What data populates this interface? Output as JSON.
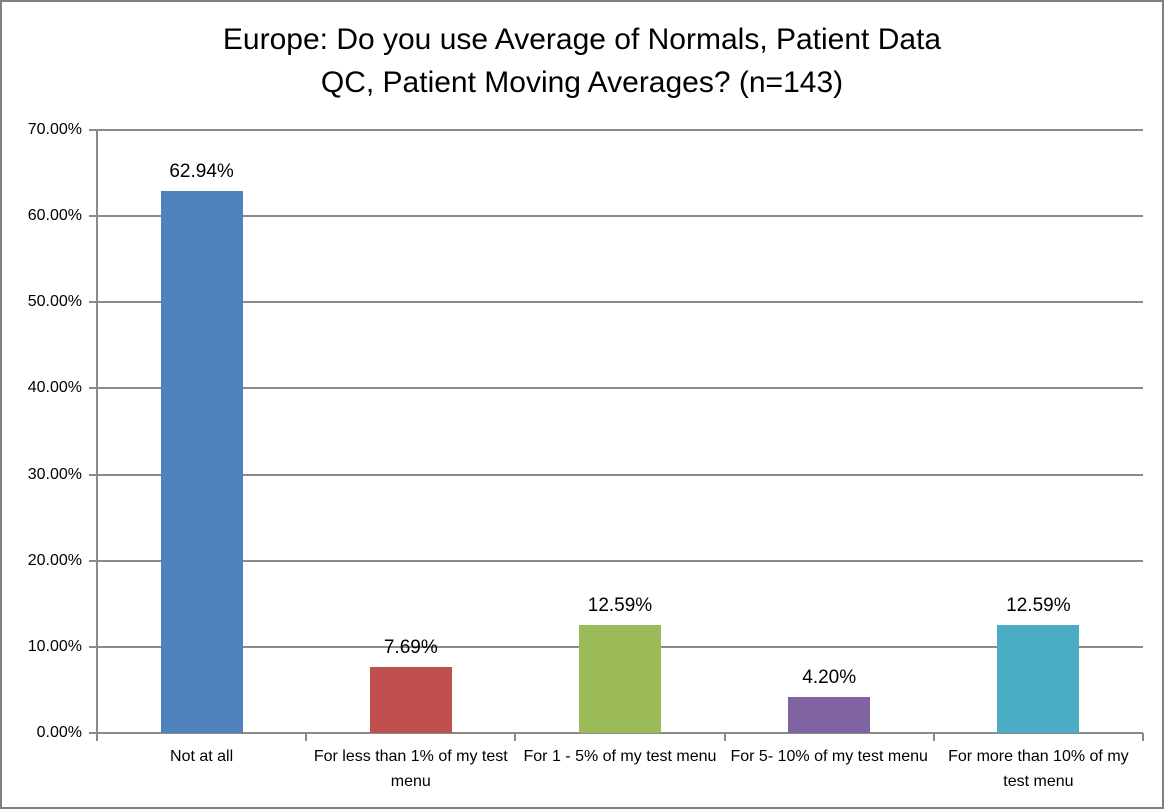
{
  "window": {
    "background": "#ffffff",
    "border_color": "#7f7f7f"
  },
  "title_lines": {
    "line1": "Europe: Do you use Average of Normals, Patient Data",
    "line2": "QC, Patient Moving Averages? (n=143)"
  },
  "chart_data": {
    "type": "bar",
    "title": "Europe: Do you use Average of Normals, Patient Data QC, Patient Moving Averages? (n=143)",
    "categories": [
      "Not at all",
      "For less than 1% of my test menu",
      "For 1 - 5% of my test menu",
      "For 5- 10% of my test menu",
      "For more than 10% of my test menu"
    ],
    "values": [
      62.94,
      7.69,
      12.59,
      4.2,
      12.59
    ],
    "data_labels": [
      "62.94%",
      "7.69%",
      "12.59%",
      "4.20%",
      "12.59%"
    ],
    "bar_colors": [
      "#4F81BD",
      "#C0504D",
      "#9BBB59",
      "#8064A2",
      "#4BACC6"
    ],
    "xlabel": "",
    "ylabel": "",
    "ylim": [
      0,
      70
    ],
    "ytick_step": 10,
    "ytick_labels": [
      "0.00%",
      "10.00%",
      "20.00%",
      "30.00%",
      "40.00%",
      "50.00%",
      "60.00%",
      "70.00%"
    ],
    "grid": true,
    "gridline_color": "#8a8a8a",
    "axis_color": "#8a8a8a",
    "legend_position": "none",
    "data_label_color": "#000000",
    "text_color": "#000000"
  }
}
